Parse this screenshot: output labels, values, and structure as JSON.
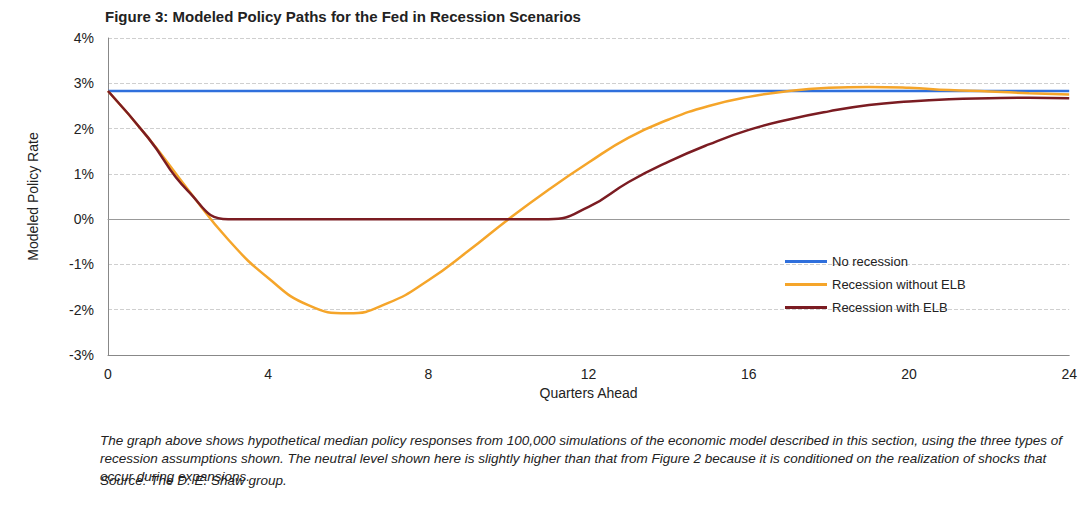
{
  "chart_data": {
    "type": "line",
    "title": "Figure 3: Modeled Policy Paths for the Fed in Recession Scenarios",
    "x_label": "Quarters Ahead",
    "y_label": "Modeled Policy Rate",
    "caption": "The graph above shows hypothetical median policy responses from 100,000 simulations of the economic model described in this section, using the three types of recession assumptions shown. The neutral level shown here is slightly higher than that from Figure 2 because it is conditioned on the realization of shocks that occur during expansions.",
    "source": "Source: The D. E. Shaw group.",
    "x": [
      0,
      1,
      2,
      3,
      4,
      5,
      6,
      7,
      8,
      9,
      10,
      11,
      12,
      13,
      14,
      15,
      16,
      17,
      18,
      19,
      20,
      21,
      22,
      23,
      24
    ],
    "series": [
      {
        "name": "No recession",
        "color": "#2f6fdc",
        "values": [
          2.83,
          2.83,
          2.83,
          2.83,
          2.83,
          2.83,
          2.83,
          2.83,
          2.83,
          2.83,
          2.83,
          2.83,
          2.83,
          2.83,
          2.83,
          2.83,
          2.83,
          2.83,
          2.83,
          2.83,
          2.83,
          2.83,
          2.83,
          2.83,
          2.83
        ]
      },
      {
        "name": "Recession without ELB",
        "color": "#f5a52a",
        "values": [
          2.83,
          1.8,
          0.65,
          -0.45,
          -1.3,
          -1.9,
          -2.08,
          -1.85,
          -1.35,
          -0.7,
          0.0,
          0.65,
          1.25,
          1.8,
          2.2,
          2.5,
          2.7,
          2.83,
          2.9,
          2.92,
          2.9,
          2.85,
          2.82,
          2.78,
          2.75
        ]
      },
      {
        "name": "Recession with ELB",
        "color": "#7b1c22",
        "values": [
          2.83,
          1.8,
          0.62,
          0.0,
          0.0,
          0.0,
          0.0,
          0.0,
          0.0,
          0.0,
          0.0,
          0.0,
          0.27,
          0.82,
          1.27,
          1.65,
          1.97,
          2.2,
          2.38,
          2.52,
          2.6,
          2.65,
          2.67,
          2.68,
          2.67
        ]
      }
    ],
    "xlim": [
      0,
      24
    ],
    "xticks": [
      0,
      4,
      8,
      12,
      16,
      20,
      24
    ],
    "ylim": [
      -3,
      4
    ],
    "yticks": [
      {
        "value": -3,
        "label": "-3%"
      },
      {
        "value": -2,
        "label": "-2%"
      },
      {
        "value": -1,
        "label": "-1%"
      },
      {
        "value": 0,
        "label": "0%"
      },
      {
        "value": 1,
        "label": "1%"
      },
      {
        "value": 2,
        "label": "2%"
      },
      {
        "value": 3,
        "label": "3%"
      },
      {
        "value": 4,
        "label": "4%"
      }
    ],
    "grid": true,
    "legend": "lower right"
  }
}
